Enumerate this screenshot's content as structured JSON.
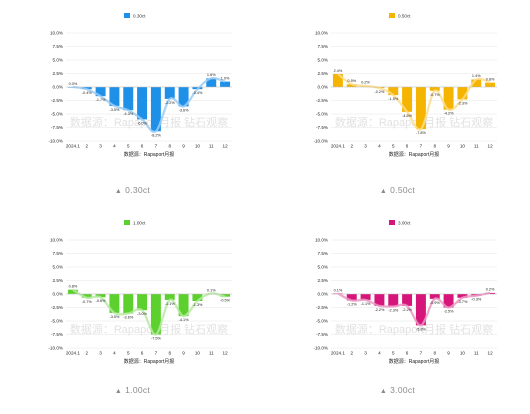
{
  "shared": {
    "source_text": "数据源：Rapaport月报",
    "watermark": "数据源：Rapaport月报 钻石观察"
  },
  "chart_data": [
    {
      "type": "bar",
      "series": [
        {
          "name": "0.30ct",
          "values": [
            0.0,
            -0.4,
            -1.7,
            -3.5,
            -4.3,
            -6.0,
            -8.2,
            -2.2,
            -3.6,
            -0.4,
            1.6,
            1.0
          ]
        }
      ],
      "categories": [
        "2024.1",
        "2",
        "3",
        "4",
        "5",
        "6",
        "7",
        "8",
        "9",
        "10",
        "11",
        "12"
      ],
      "data_labels": [
        "0.0%",
        "-0.4%",
        "-1.7%",
        "-3.5%",
        "-4.3%",
        "-6.0%",
        "-8.2%",
        "-2.2%",
        "-3.6%",
        "-0.4%",
        "1.6%",
        "1.0%"
      ],
      "yticks": [
        "10.0%",
        "7.5%",
        "5.0%",
        "2.5%",
        "0.0%",
        "-2.5%",
        "-5.0%",
        "-7.5%",
        "-10.0%"
      ],
      "ylim": [
        -10,
        10
      ],
      "color": "#1E90E8",
      "legend": "top-center",
      "caption": "0.30ct"
    },
    {
      "type": "bar",
      "series": [
        {
          "name": "0.50ct",
          "values": [
            2.4,
            0.5,
            0.2,
            -0.2,
            -1.5,
            -4.6,
            -7.8,
            -0.7,
            -4.2,
            -2.3,
            1.4,
            0.8
          ]
        }
      ],
      "categories": [
        "2024.1",
        "2",
        "3",
        "4",
        "5",
        "6",
        "7",
        "8",
        "9",
        "10",
        "11",
        "12"
      ],
      "data_labels": [
        "2.4%",
        "0.5%",
        "0.2%",
        "-0.2%",
        "-1.5%",
        "-4.6%",
        "-7.8%",
        "-0.7%",
        "-4.2%",
        "-2.3%",
        "1.4%",
        "0.8%"
      ],
      "yticks": [
        "10.0%",
        "7.5%",
        "5.0%",
        "2.5%",
        "0.0%",
        "-2.5%",
        "-5.0%",
        "-7.5%",
        "-10.0%"
      ],
      "ylim": [
        -10,
        10
      ],
      "color": "#F5B400",
      "legend": "top-center",
      "caption": "0.50ct"
    },
    {
      "type": "bar",
      "series": [
        {
          "name": "1.00ct",
          "values": [
            0.8,
            -0.7,
            -0.6,
            -3.5,
            -3.6,
            -3.0,
            -7.5,
            -1.1,
            -4.1,
            -1.3,
            0.1,
            -0.5
          ]
        }
      ],
      "categories": [
        "2024.1",
        "2",
        "3",
        "4",
        "5",
        "6",
        "7",
        "8",
        "9",
        "10",
        "11",
        "12"
      ],
      "data_labels": [
        "0.8%",
        "-0.7%",
        "-0.6%",
        "-3.5%",
        "-3.6%",
        "-3.0%",
        "-7.5%",
        "-1.1%",
        "-4.1%",
        "-1.3%",
        "0.1%",
        "-0.5%"
      ],
      "yticks": [
        "10.0%",
        "7.5%",
        "5.0%",
        "2.5%",
        "0.0%",
        "-2.5%",
        "-5.0%",
        "-7.5%",
        "-10.0%"
      ],
      "ylim": [
        -10,
        10
      ],
      "color": "#5CD12E",
      "legend": "top-center",
      "caption": "1.00ct"
    },
    {
      "type": "bar",
      "series": [
        {
          "name": "3.00ct",
          "values": [
            0.1,
            -1.2,
            -1.1,
            -2.2,
            -2.3,
            -2.2,
            -5.8,
            -0.9,
            -2.5,
            -0.7,
            -0.3,
            0.2
          ]
        }
      ],
      "categories": [
        "2024.1",
        "2",
        "3",
        "4",
        "5",
        "6",
        "7",
        "8",
        "9",
        "10",
        "11",
        "12"
      ],
      "data_labels": [
        "0.1%",
        "-1.2%",
        "-1.1%",
        "-2.2%",
        "-2.3%",
        "-2.2%",
        "-5.8%",
        "-0.9%",
        "-2.5%",
        "-0.7%",
        "-0.3%",
        "0.2%"
      ],
      "yticks": [
        "10.0%",
        "7.5%",
        "5.0%",
        "2.5%",
        "0.0%",
        "-2.5%",
        "-5.0%",
        "-7.5%",
        "-10.0%"
      ],
      "ylim": [
        -10,
        10
      ],
      "color": "#D6157A",
      "legend": "top-center",
      "caption": "3.00ct"
    }
  ]
}
